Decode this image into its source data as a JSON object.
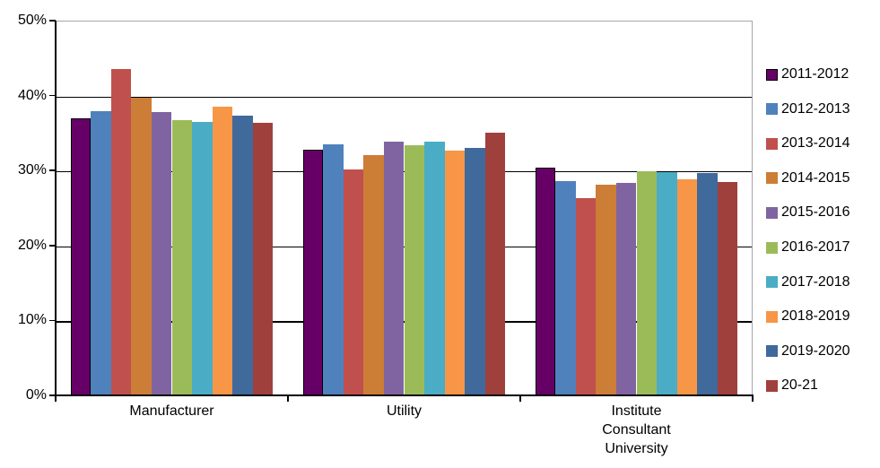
{
  "chart_data": {
    "type": "bar",
    "title": "",
    "xlabel": "",
    "ylabel": "",
    "categories": [
      "Manufacturer",
      "Utility",
      "Institute Consultant University"
    ],
    "category_label_lines": [
      [
        "Manufacturer"
      ],
      [
        "Utility"
      ],
      [
        "Institute",
        "Consultant",
        "University"
      ]
    ],
    "series": [
      {
        "name": "2011-2012",
        "color": "#660066",
        "outlined": true,
        "values": [
          37.0,
          32.8,
          30.4
        ]
      },
      {
        "name": "2012-2013",
        "color": "#4F81BD",
        "outlined": false,
        "values": [
          37.9,
          33.5,
          28.6
        ]
      },
      {
        "name": "2013-2014",
        "color": "#C0504D",
        "outlined": false,
        "values": [
          43.6,
          30.2,
          26.3
        ]
      },
      {
        "name": "2014-2015",
        "color": "#CC7D36",
        "outlined": false,
        "values": [
          39.7,
          32.1,
          28.1
        ]
      },
      {
        "name": "2015-2016",
        "color": "#8064A2",
        "outlined": false,
        "values": [
          37.8,
          33.8,
          28.4
        ]
      },
      {
        "name": "2016-2017",
        "color": "#9BBB59",
        "outlined": false,
        "values": [
          36.7,
          33.4,
          29.9
        ]
      },
      {
        "name": "2017-2018",
        "color": "#4BACC6",
        "outlined": false,
        "values": [
          36.5,
          33.8,
          29.8
        ]
      },
      {
        "name": "2018-2019",
        "color": "#F79646",
        "outlined": false,
        "values": [
          38.5,
          32.6,
          28.8
        ]
      },
      {
        "name": "2019-2020",
        "color": "#40699C",
        "outlined": false,
        "values": [
          37.3,
          33.0,
          29.7
        ]
      },
      {
        "name": "20-21",
        "color": "#9F403D",
        "outlined": false,
        "values": [
          36.4,
          35.1,
          28.5
        ]
      }
    ],
    "ylim": [
      0,
      50
    ],
    "ytick_values": [
      0,
      10,
      20,
      30,
      40,
      50
    ],
    "ytick_labels": [
      "0%",
      "10%",
      "20%",
      "30%",
      "40%",
      "50%"
    ],
    "grid": true,
    "legend_position": "right",
    "colors": {
      "axis": "#000000",
      "gridline": "#000000",
      "plot_border": "#A6A6A6",
      "background": "#FFFFFF"
    }
  }
}
